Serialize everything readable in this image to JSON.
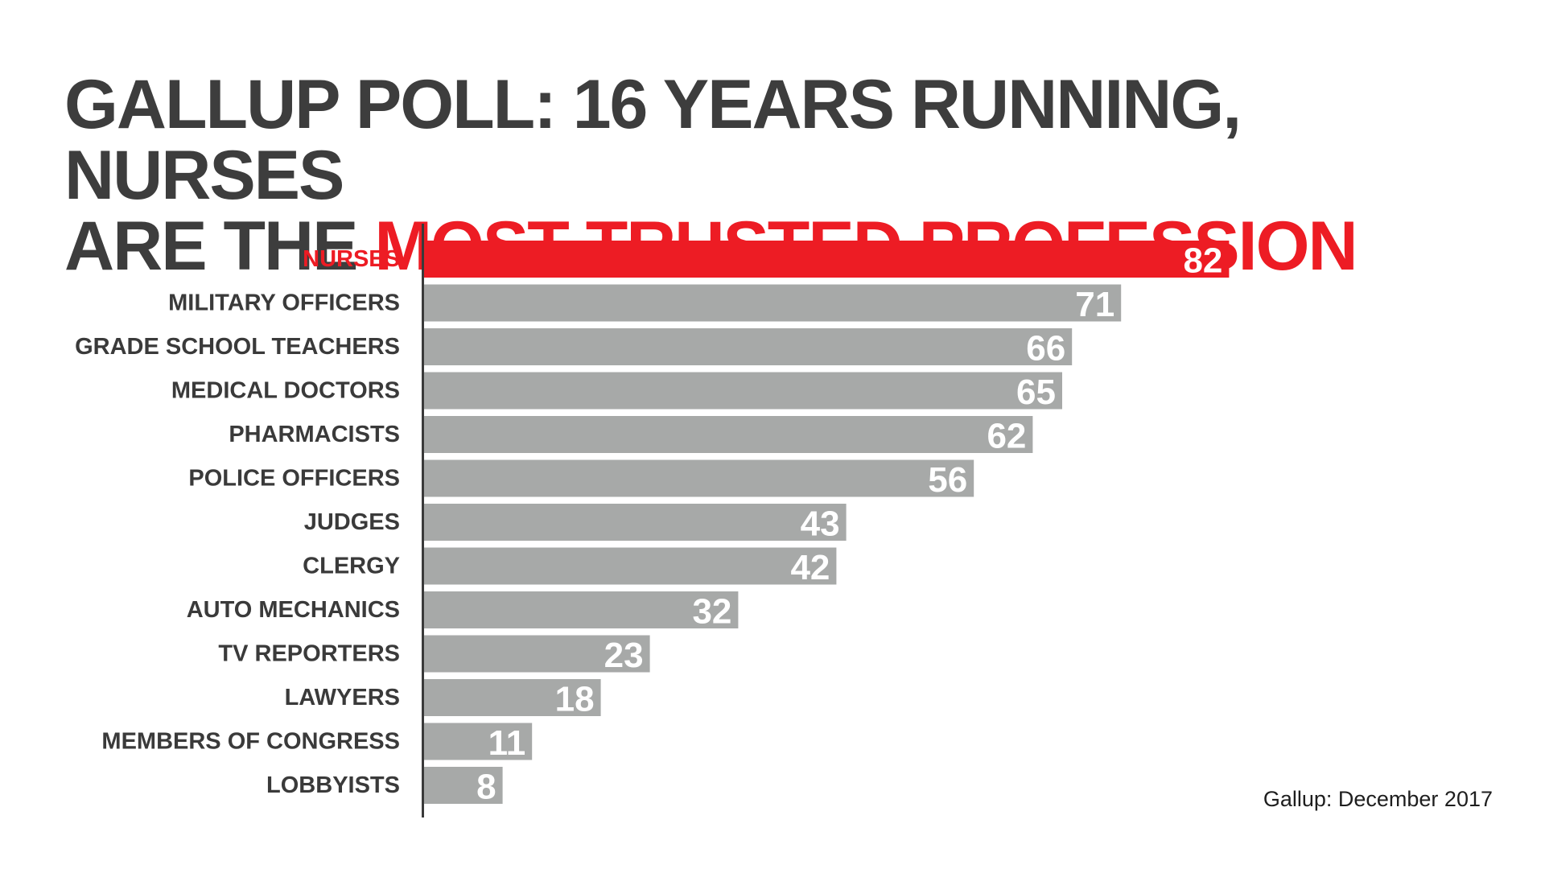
{
  "headline": {
    "line1": "GALLUP POLL: 16 YEARS RUNNING, NURSES",
    "line2_prefix": "ARE THE ",
    "line2_accent": "MOST TRUSTED PROFESSION"
  },
  "colors": {
    "text_dark": "#3d3d3d",
    "accent": "#ed1c24",
    "bar_default": "#a7a9a8",
    "axis": "#3a3a3a",
    "value_text": "#ffffff"
  },
  "chart_data": {
    "type": "bar",
    "orientation": "horizontal",
    "title": "GALLUP POLL: 16 YEARS RUNNING, NURSES ARE THE MOST TRUSTED PROFESSION",
    "xlabel": "",
    "ylabel": "",
    "xlim": [
      0,
      100
    ],
    "grid": false,
    "legend": "none",
    "highlight_category": "NURSES",
    "categories": [
      "NURSES",
      "MILITARY OFFICERS",
      "GRADE SCHOOL TEACHERS",
      "MEDICAL DOCTORS",
      "PHARMACISTS",
      "POLICE OFFICERS",
      "JUDGES",
      "CLERGY",
      "AUTO MECHANICS",
      "TV REPORTERS",
      "LAWYERS",
      "MEMBERS OF CONGRESS",
      "LOBBYISTS"
    ],
    "values": [
      82,
      71,
      66,
      65,
      62,
      56,
      43,
      42,
      32,
      23,
      18,
      11,
      8
    ]
  },
  "source": "Gallup: December 2017"
}
